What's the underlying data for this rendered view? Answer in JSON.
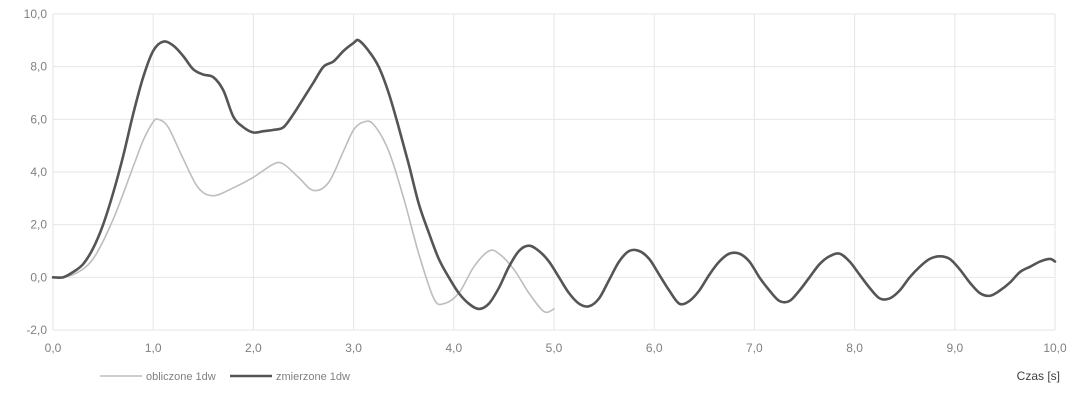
{
  "chart_data": {
    "type": "line",
    "title": "",
    "xlabel": "Czas [s]",
    "ylabel": "",
    "xlim": [
      0,
      10
    ],
    "ylim": [
      -2,
      10
    ],
    "x_ticks": [
      "0,0",
      "1,0",
      "2,0",
      "3,0",
      "4,0",
      "5,0",
      "6,0",
      "7,0",
      "8,0",
      "9,0",
      "10,0"
    ],
    "y_ticks": [
      "-2,0",
      "0,0",
      "2,0",
      "4,0",
      "6,0",
      "8,0",
      "10,0"
    ],
    "grid": true,
    "legend_position": "bottom-left",
    "colors": {
      "obliczone": "#bdbdbd",
      "zmierzone": "#555555",
      "grid": "#e6e6e6"
    },
    "series": [
      {
        "name": "obliczone 1dw",
        "color": "#bdbdbd",
        "points": [
          [
            0,
            0
          ],
          [
            0.2,
            0.1
          ],
          [
            0.4,
            0.7
          ],
          [
            0.6,
            2.2
          ],
          [
            0.8,
            4.2
          ],
          [
            0.9,
            5.2
          ],
          [
            1.0,
            5.9
          ],
          [
            1.05,
            6.0
          ],
          [
            1.15,
            5.7
          ],
          [
            1.3,
            4.5
          ],
          [
            1.45,
            3.4
          ],
          [
            1.6,
            3.1
          ],
          [
            1.8,
            3.4
          ],
          [
            2.0,
            3.8
          ],
          [
            2.2,
            4.3
          ],
          [
            2.3,
            4.3
          ],
          [
            2.45,
            3.8
          ],
          [
            2.6,
            3.3
          ],
          [
            2.75,
            3.6
          ],
          [
            2.9,
            4.8
          ],
          [
            3.0,
            5.6
          ],
          [
            3.1,
            5.9
          ],
          [
            3.2,
            5.8
          ],
          [
            3.35,
            4.8
          ],
          [
            3.5,
            3.0
          ],
          [
            3.65,
            0.9
          ],
          [
            3.8,
            -0.8
          ],
          [
            3.9,
            -1.0
          ],
          [
            4.05,
            -0.6
          ],
          [
            4.2,
            0.4
          ],
          [
            4.35,
            1.0
          ],
          [
            4.45,
            0.9
          ],
          [
            4.6,
            0.3
          ],
          [
            4.75,
            -0.6
          ],
          [
            4.9,
            -1.3
          ],
          [
            5.0,
            -1.2
          ]
        ]
      },
      {
        "name": "zmierzone 1dw",
        "color": "#555555",
        "points": [
          [
            0,
            0
          ],
          [
            0.1,
            0.0
          ],
          [
            0.2,
            0.2
          ],
          [
            0.3,
            0.5
          ],
          [
            0.4,
            1.1
          ],
          [
            0.5,
            2.0
          ],
          [
            0.6,
            3.2
          ],
          [
            0.7,
            4.6
          ],
          [
            0.8,
            6.2
          ],
          [
            0.9,
            7.6
          ],
          [
            1.0,
            8.6
          ],
          [
            1.1,
            8.95
          ],
          [
            1.2,
            8.8
          ],
          [
            1.3,
            8.4
          ],
          [
            1.4,
            7.9
          ],
          [
            1.5,
            7.7
          ],
          [
            1.6,
            7.6
          ],
          [
            1.7,
            7.1
          ],
          [
            1.8,
            6.1
          ],
          [
            1.9,
            5.7
          ],
          [
            2.0,
            5.5
          ],
          [
            2.1,
            5.55
          ],
          [
            2.2,
            5.6
          ],
          [
            2.3,
            5.7
          ],
          [
            2.4,
            6.2
          ],
          [
            2.5,
            6.8
          ],
          [
            2.6,
            7.4
          ],
          [
            2.7,
            8.0
          ],
          [
            2.8,
            8.2
          ],
          [
            2.9,
            8.6
          ],
          [
            3.0,
            8.9
          ],
          [
            3.05,
            9.0
          ],
          [
            3.15,
            8.6
          ],
          [
            3.25,
            8.0
          ],
          [
            3.35,
            7.0
          ],
          [
            3.45,
            5.7
          ],
          [
            3.55,
            4.3
          ],
          [
            3.65,
            2.8
          ],
          [
            3.75,
            1.7
          ],
          [
            3.85,
            0.7
          ],
          [
            3.95,
            0.0
          ],
          [
            4.05,
            -0.6
          ],
          [
            4.15,
            -1.0
          ],
          [
            4.25,
            -1.2
          ],
          [
            4.35,
            -1.0
          ],
          [
            4.45,
            -0.4
          ],
          [
            4.55,
            0.4
          ],
          [
            4.65,
            1.0
          ],
          [
            4.75,
            1.2
          ],
          [
            4.85,
            1.0
          ],
          [
            4.95,
            0.6
          ],
          [
            5.05,
            0.0
          ],
          [
            5.15,
            -0.6
          ],
          [
            5.25,
            -1.0
          ],
          [
            5.35,
            -1.1
          ],
          [
            5.45,
            -0.8
          ],
          [
            5.55,
            -0.1
          ],
          [
            5.65,
            0.6
          ],
          [
            5.75,
            1.0
          ],
          [
            5.85,
            1.0
          ],
          [
            5.95,
            0.7
          ],
          [
            6.05,
            0.1
          ],
          [
            6.15,
            -0.5
          ],
          [
            6.25,
            -1.0
          ],
          [
            6.35,
            -0.9
          ],
          [
            6.45,
            -0.5
          ],
          [
            6.55,
            0.1
          ],
          [
            6.65,
            0.6
          ],
          [
            6.75,
            0.9
          ],
          [
            6.85,
            0.9
          ],
          [
            6.95,
            0.6
          ],
          [
            7.05,
            0.0
          ],
          [
            7.15,
            -0.5
          ],
          [
            7.25,
            -0.9
          ],
          [
            7.35,
            -0.9
          ],
          [
            7.45,
            -0.5
          ],
          [
            7.55,
            0.0
          ],
          [
            7.65,
            0.5
          ],
          [
            7.75,
            0.8
          ],
          [
            7.85,
            0.9
          ],
          [
            7.95,
            0.6
          ],
          [
            8.05,
            0.1
          ],
          [
            8.15,
            -0.4
          ],
          [
            8.25,
            -0.8
          ],
          [
            8.35,
            -0.8
          ],
          [
            8.45,
            -0.5
          ],
          [
            8.55,
            0.0
          ],
          [
            8.65,
            0.4
          ],
          [
            8.75,
            0.7
          ],
          [
            8.85,
            0.8
          ],
          [
            8.95,
            0.7
          ],
          [
            9.05,
            0.3
          ],
          [
            9.15,
            -0.2
          ],
          [
            9.25,
            -0.6
          ],
          [
            9.35,
            -0.7
          ],
          [
            9.45,
            -0.5
          ],
          [
            9.55,
            -0.2
          ],
          [
            9.65,
            0.2
          ],
          [
            9.75,
            0.4
          ],
          [
            9.85,
            0.6
          ],
          [
            9.95,
            0.7
          ],
          [
            10.0,
            0.6
          ]
        ]
      }
    ]
  }
}
